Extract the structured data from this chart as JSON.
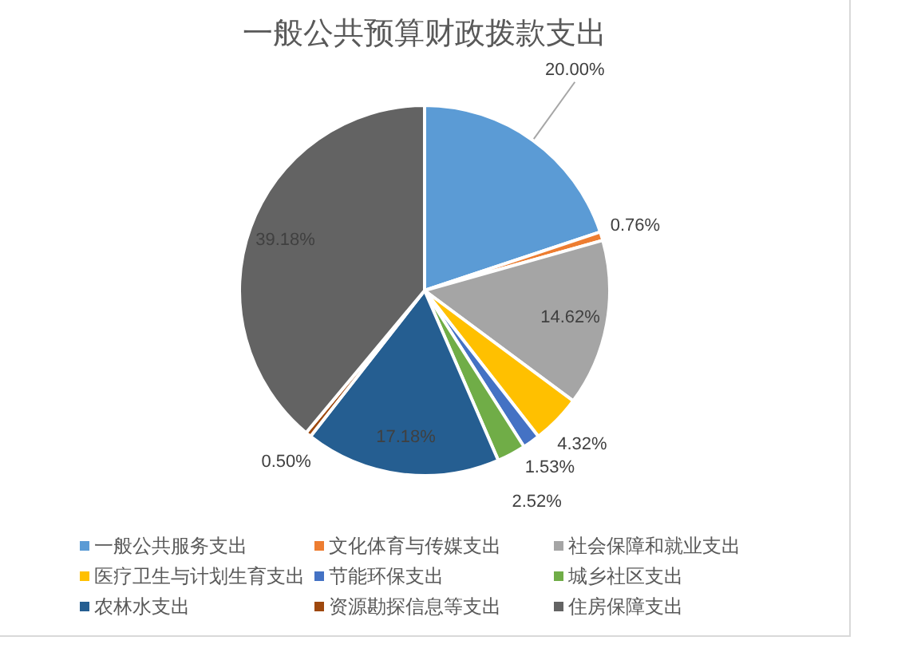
{
  "chart_data": {
    "type": "pie",
    "title": "一般公共预算财政拨款支出",
    "categories": [
      "一般公共服务支出",
      "文化体育与传媒支出",
      "社会保障和就业支出",
      "医疗卫生与计划生育支出",
      "节能环保支出",
      "城乡社区支出",
      "农林水支出",
      "资源勘探信息等支出",
      "住房保障支出"
    ],
    "values": [
      20.0,
      0.76,
      14.62,
      4.32,
      1.53,
      2.52,
      17.18,
      0.5,
      39.18
    ],
    "colors": [
      "#5b9bd5",
      "#ed7d31",
      "#a5a5a5",
      "#ffc000",
      "#4472c4",
      "#70ad47",
      "#255e91",
      "#9e480e",
      "#636363"
    ],
    "value_labels": [
      "20.00%",
      "0.76%",
      "14.62%",
      "4.32%",
      "1.53%",
      "2.52%",
      "17.18%",
      "0.50%",
      "39.18%"
    ],
    "legend": "bottom"
  }
}
